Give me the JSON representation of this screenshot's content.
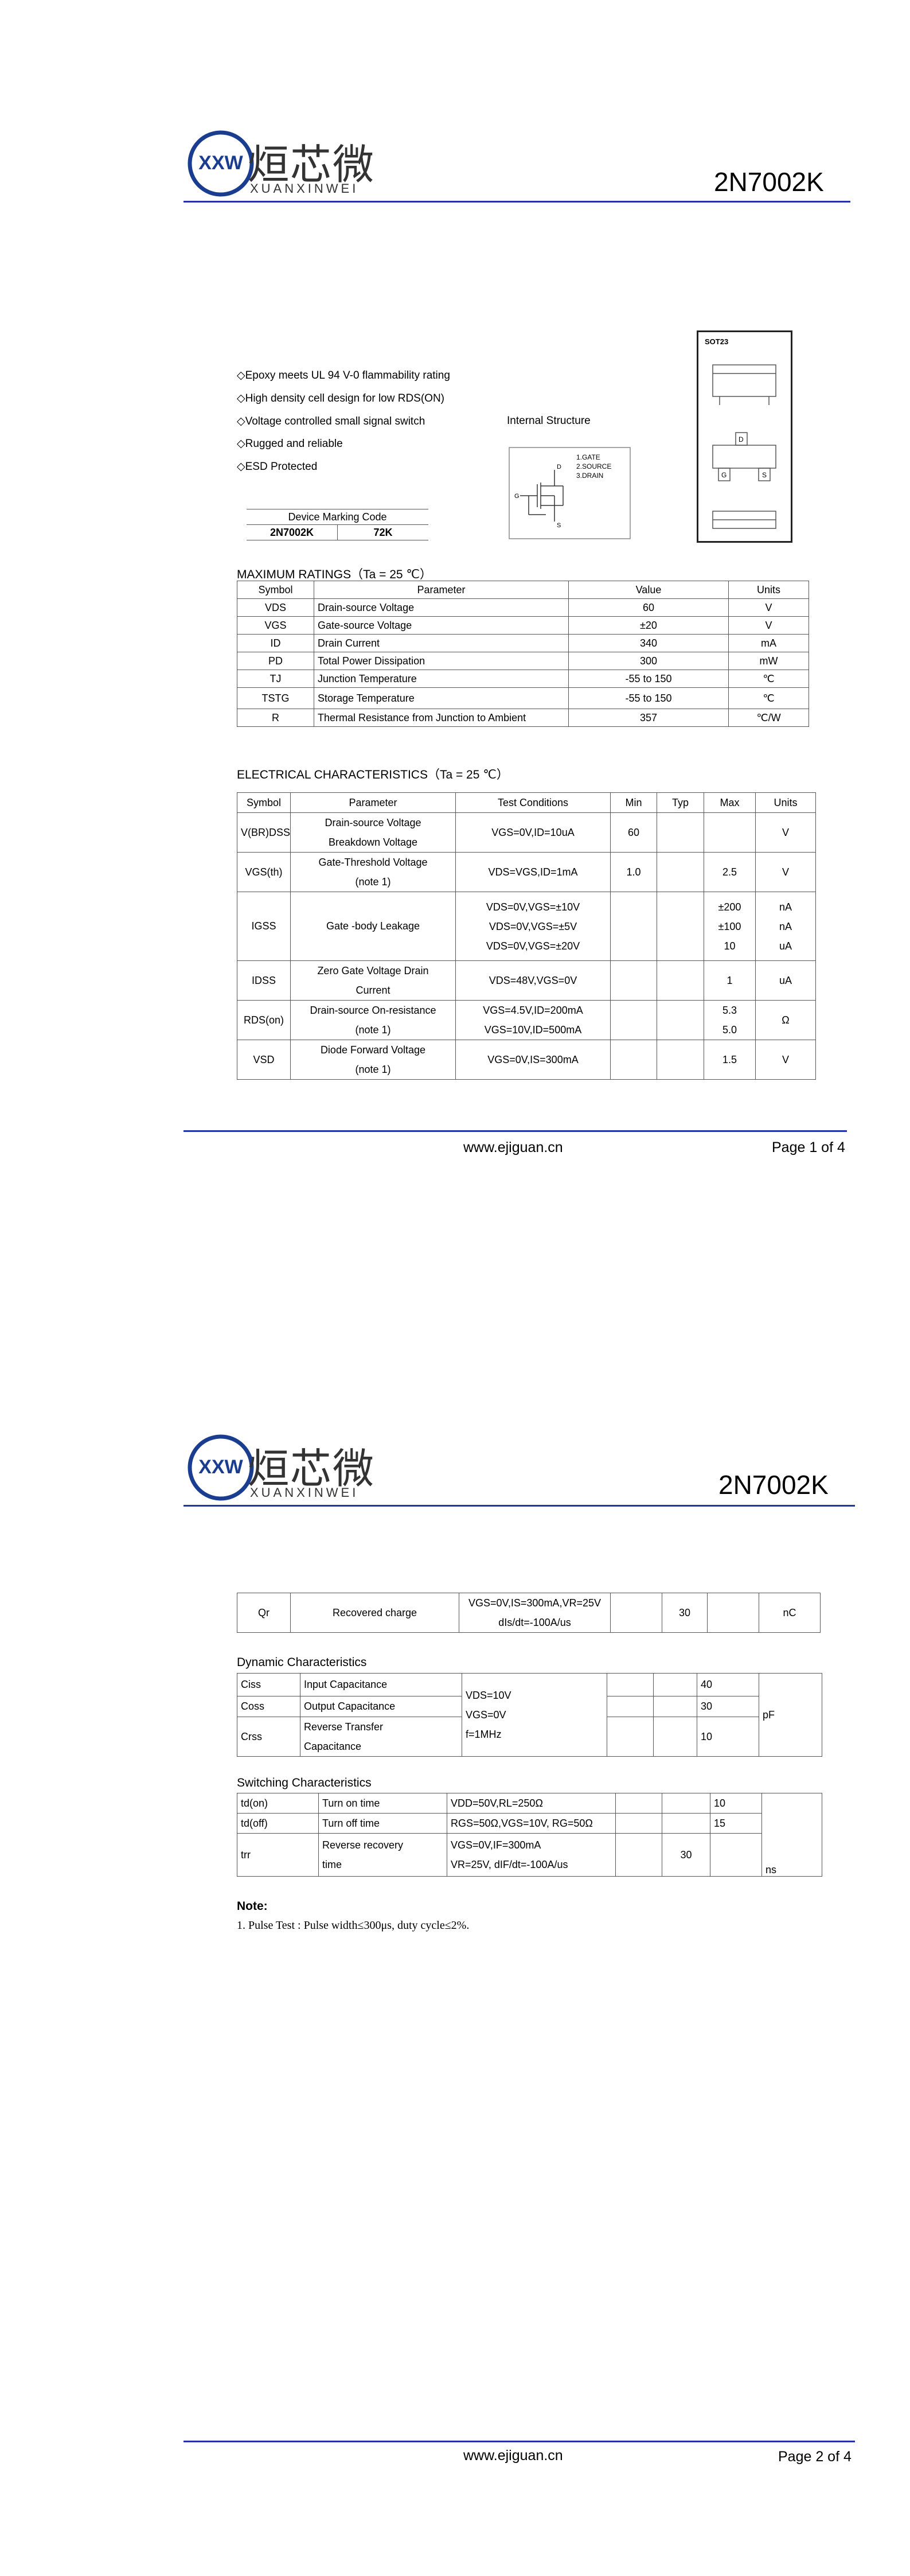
{
  "logo": {
    "mark": "XXW",
    "chinese": "烜芯微",
    "latin": "XUANXINWEI"
  },
  "part_number": "2N7002K",
  "features": [
    "◇Epoxy meets UL 94 V-0 flammability rating",
    "◇High density cell design for low RDS(ON)",
    "◇Voltage controlled small signal switch",
    "◇Rugged and reliable",
    "◇ESD Protected"
  ],
  "internal_structure": {
    "title": "Internal Structure",
    "pins": [
      "1.GATE",
      "2.SOURCE",
      "3.DRAIN"
    ],
    "gate": "G",
    "drain": "D",
    "source": "S"
  },
  "package": {
    "name": "SOT23",
    "drain": "D",
    "gate": "G",
    "source": "S"
  },
  "marking": {
    "title": "Device Marking Code",
    "part": "2N7002K",
    "code": "72K"
  },
  "max_ratings": {
    "title": "MAXIMUM RATINGS（Ta = 25 ℃）",
    "header": [
      "Symbol",
      "Parameter",
      "Value",
      "Units"
    ],
    "rows": [
      {
        "symbol": "VDS",
        "parameter": "Drain-source Voltage",
        "value": "60",
        "units": "V"
      },
      {
        "symbol": "VGS",
        "parameter": "Gate-source Voltage",
        "value": "±20",
        "units": "V"
      },
      {
        "symbol": "ID",
        "parameter": "Drain Current",
        "value": "340",
        "units": "mA"
      },
      {
        "symbol": "PD",
        "parameter": "Total Power Dissipation",
        "value": "300",
        "units": "mW"
      },
      {
        "symbol": "TJ",
        "parameter": "Junction Temperature",
        "value": "-55 to 150",
        "units": "℃"
      },
      {
        "symbol": "TSTG",
        "parameter": "Storage Temperature",
        "value": "-55 to 150",
        "units": "℃"
      },
      {
        "symbol": "R",
        "parameter": "Thermal Resistance from Junction to Ambient",
        "value": "357",
        "units": "℃/W"
      }
    ]
  },
  "electrical": {
    "title": "ELECTRICAL CHARACTERISTICS（Ta = 25 ℃）",
    "header": [
      "Symbol",
      "Parameter",
      "Test Conditions",
      "Min",
      "Typ",
      "Max",
      "Units"
    ],
    "rows": [
      {
        "symbol": "V(BR)DSS",
        "parameter": [
          "Drain-source Voltage",
          "Breakdown Voltage"
        ],
        "conditions": "VGS=0V,ID=10uA",
        "min": "60",
        "units": "V"
      },
      {
        "symbol": "VGS(th)",
        "parameter": [
          "Gate-Threshold Voltage",
          "(note 1)"
        ],
        "conditions": "VDS=VGS,ID=1mA",
        "min": "1.0",
        "max": "2.5",
        "units": "V"
      },
      {
        "symbol": "IGSS",
        "parameter": "Gate -body Leakage",
        "conditions": [
          "VDS=0V,VGS=±10V",
          "VDS=0V,VGS=±5V",
          "VDS=0V,VGS=±20V"
        ],
        "max": [
          "±200",
          "±100",
          "10"
        ],
        "units": [
          "nA",
          "nA",
          "uA"
        ]
      },
      {
        "symbol": "IDSS",
        "parameter": [
          "Zero Gate Voltage Drain",
          "Current"
        ],
        "conditions": "VDS=48V,VGS=0V",
        "max": "1",
        "units": "uA"
      },
      {
        "symbol": "RDS(on)",
        "parameter": [
          "Drain-source On-resistance",
          "(note 1)"
        ],
        "conditions": [
          "VGS=4.5V,ID=200mA",
          "VGS=10V,ID=500mA"
        ],
        "max": [
          "5.3",
          "5.0"
        ],
        "units": "Ω"
      },
      {
        "symbol": "VSD",
        "parameter": [
          "Diode Forward Voltage",
          "(note 1)"
        ],
        "conditions": "VGS=0V,IS=300mA",
        "max": "1.5",
        "units": "V"
      }
    ]
  },
  "footer": {
    "url": "www.ejiguan.cn",
    "page1": "Page 1 of 4",
    "page2": "Page 2 of 4"
  },
  "recovery": {
    "rows": [
      {
        "symbol": "Qr",
        "parameter": "Recovered charge",
        "conditions": [
          "VGS=0V,IS=300mA,VR=25V",
          "dIs/dt=-100A/us"
        ],
        "typ": "30",
        "units": "nC"
      }
    ]
  },
  "dynamic": {
    "title": "Dynamic Characteristics",
    "rows": [
      {
        "symbol": "Ciss",
        "parameter": "Input Capacitance",
        "conditions": [
          "VDS=10V",
          "VGS=0V",
          "f=1MHz"
        ],
        "max": "40",
        "units": "pF"
      },
      {
        "symbol": "Coss",
        "parameter": "Output Capacitance",
        "max": "30"
      },
      {
        "symbol": "Crss",
        "parameter": [
          "Reverse Transfer",
          "Capacitance"
        ],
        "max": "10"
      }
    ]
  },
  "switching": {
    "title": "Switching Characteristics",
    "rows": [
      {
        "symbol": "td(on)",
        "parameter": "Turn on time",
        "conditions": "VDD=50V,RL=250Ω",
        "max": "10",
        "units": "ns"
      },
      {
        "symbol": "td(off)",
        "parameter": "Turn off time",
        "conditions": "RGS=50Ω,VGS=10V, RG=50Ω",
        "max": "15"
      },
      {
        "symbol": "trr",
        "parameter": [
          "Reverse recovery",
          "time"
        ],
        "conditions": [
          "VGS=0V,IF=300mA",
          "VR=25V, dIF/dt=-100A/us"
        ],
        "typ": "30"
      }
    ]
  },
  "note": {
    "title": "Note:",
    "items": [
      "1. Pulse Test : Pulse width≤300μs, duty cycle≤2%."
    ]
  }
}
